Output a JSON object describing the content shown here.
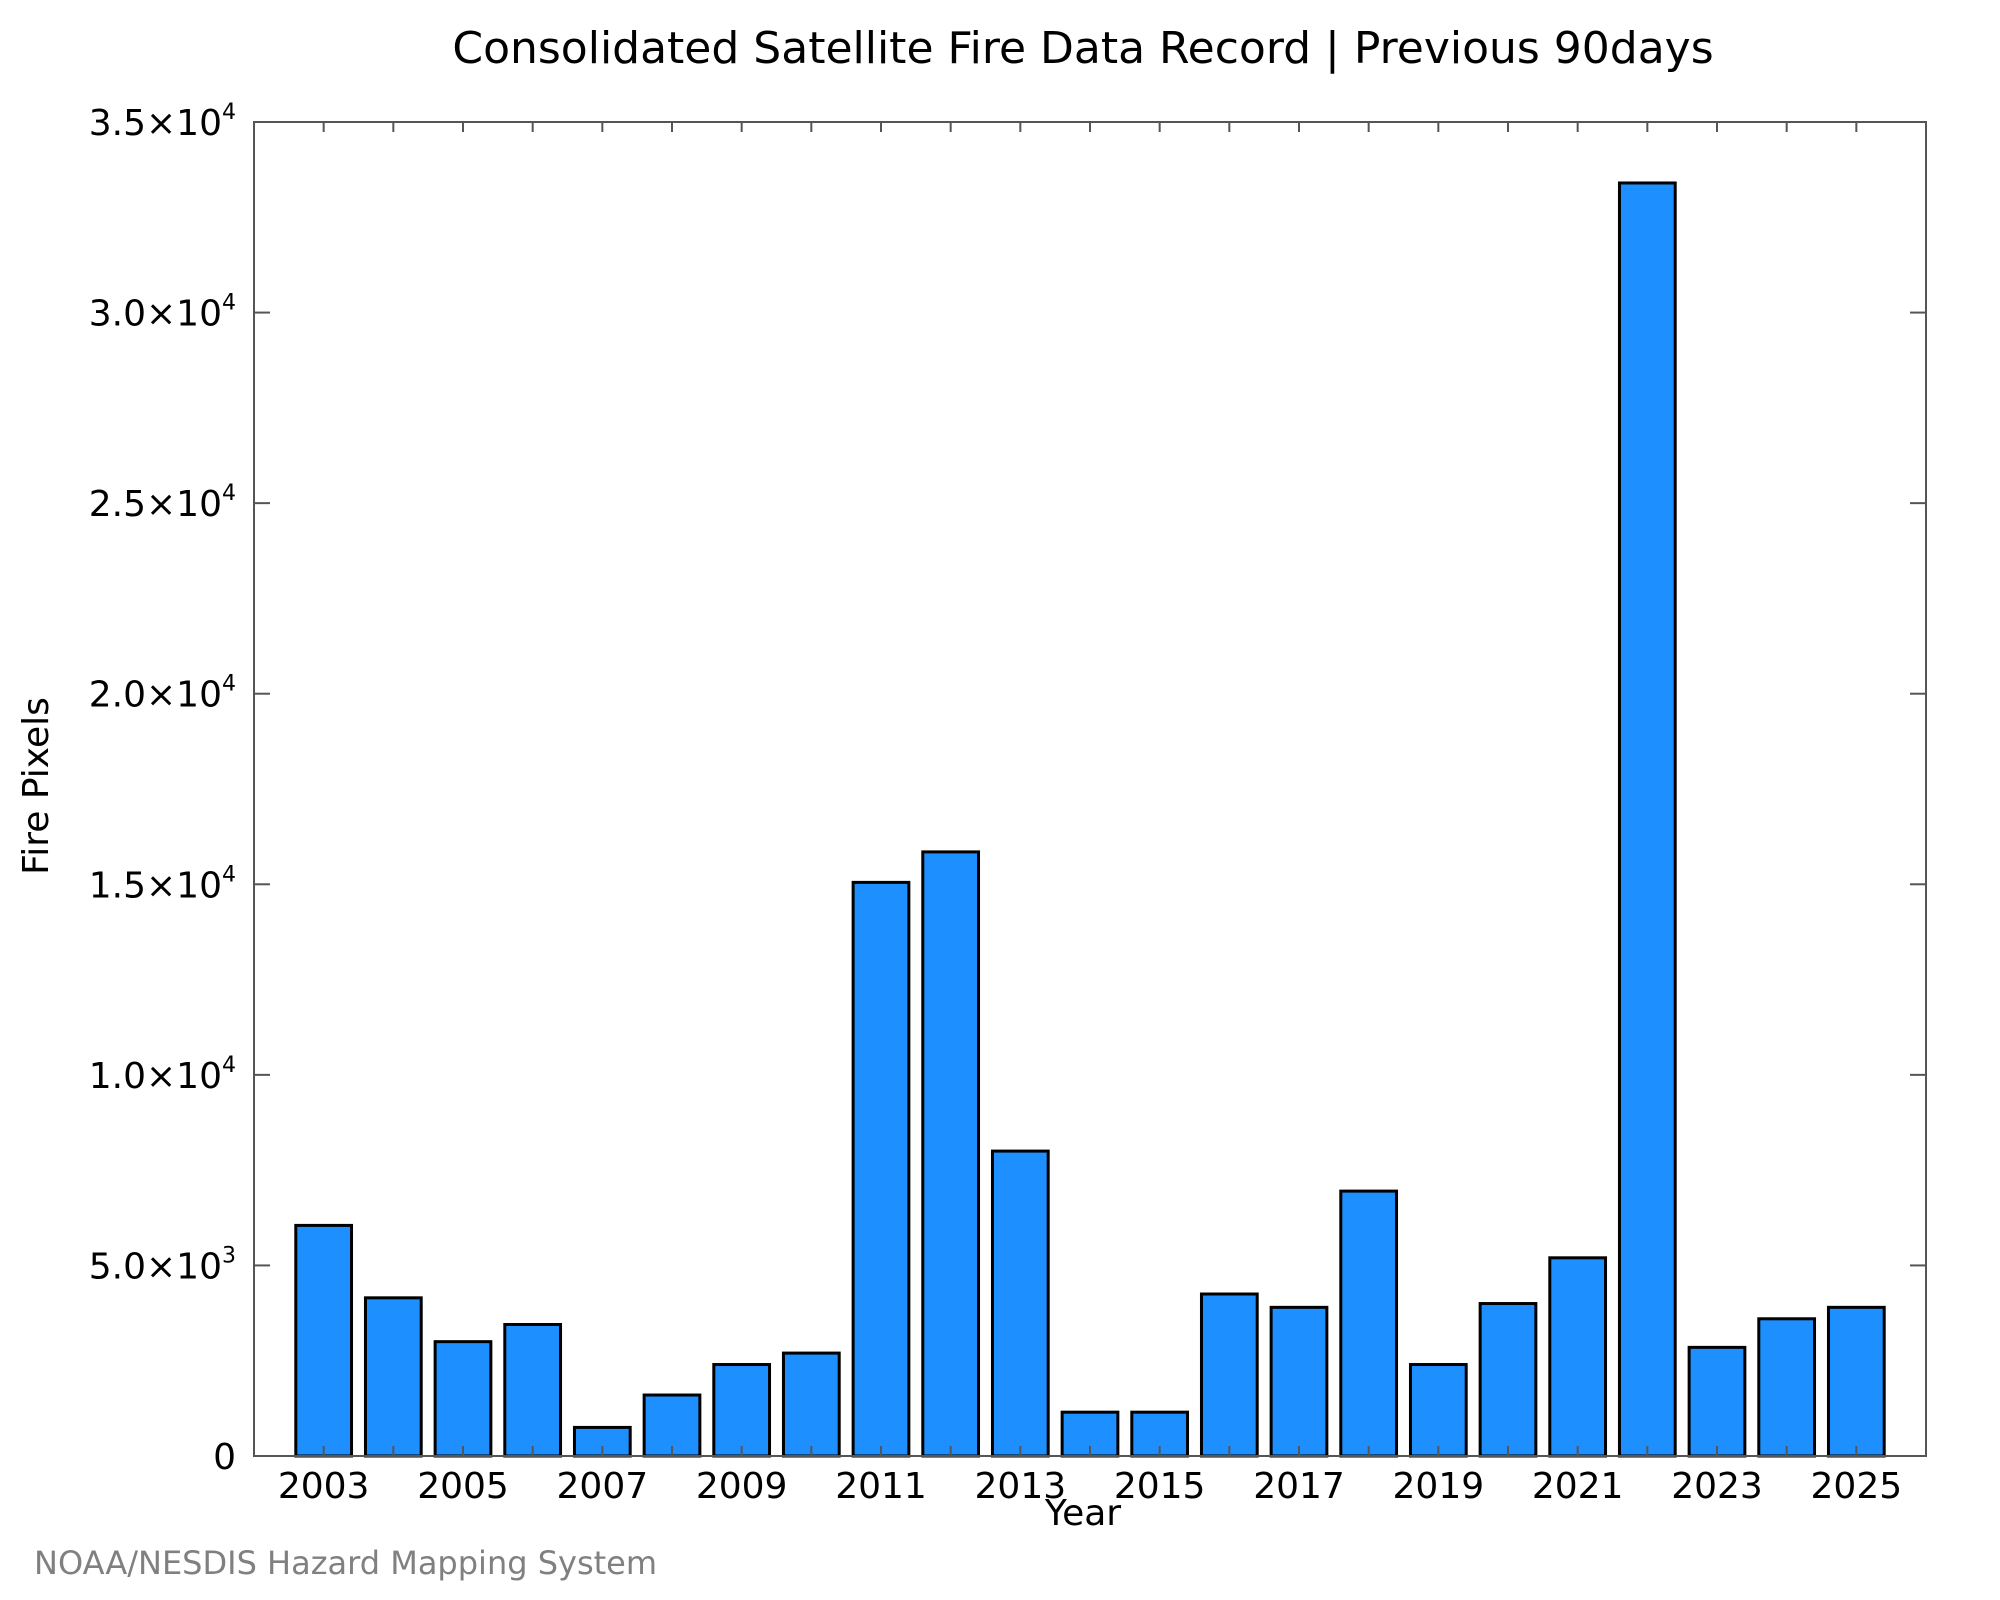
{
  "colors": {
    "bar_fill": "#1e8fff",
    "bar_stroke": "#000000",
    "axis": "#555555",
    "text": "#000000",
    "footer": "#808080"
  },
  "footer": {
    "credit": "NOAA/NESDIS Hazard Mapping System"
  },
  "chart_data": {
    "type": "bar",
    "title": "Consolidated Satellite Fire Data Record | Previous 90days",
    "xlabel": "Year",
    "ylabel": "Fire Pixels",
    "ylim": [
      0,
      35000
    ],
    "xlim": [
      2002,
      2026
    ],
    "grid": false,
    "legend": "none",
    "categories": [
      2003,
      2004,
      2005,
      2006,
      2007,
      2008,
      2009,
      2010,
      2011,
      2012,
      2013,
      2014,
      2015,
      2016,
      2017,
      2018,
      2019,
      2020,
      2021,
      2022,
      2023,
      2024,
      2025
    ],
    "values": [
      6050,
      4150,
      3000,
      3450,
      750,
      1600,
      2400,
      2700,
      15050,
      15850,
      8000,
      1150,
      1150,
      4250,
      3900,
      6950,
      2400,
      4000,
      5200,
      33400,
      2850,
      3600,
      3900
    ],
    "x_tick_labels": [
      "2003",
      "2005",
      "2007",
      "2009",
      "2011",
      "2013",
      "2015",
      "2017",
      "2019",
      "2021",
      "2023",
      "2025"
    ],
    "y_ticks": [
      {
        "value": 0,
        "mantissa": "0",
        "exponent": ""
      },
      {
        "value": 5000,
        "mantissa": "5.0×10",
        "exponent": "3"
      },
      {
        "value": 10000,
        "mantissa": "1.0×10",
        "exponent": "4"
      },
      {
        "value": 15000,
        "mantissa": "1.5×10",
        "exponent": "4"
      },
      {
        "value": 20000,
        "mantissa": "2.0×10",
        "exponent": "4"
      },
      {
        "value": 25000,
        "mantissa": "2.5×10",
        "exponent": "4"
      },
      {
        "value": 30000,
        "mantissa": "3.0×10",
        "exponent": "4"
      },
      {
        "value": 35000,
        "mantissa": "3.5×10",
        "exponent": "4"
      }
    ]
  }
}
